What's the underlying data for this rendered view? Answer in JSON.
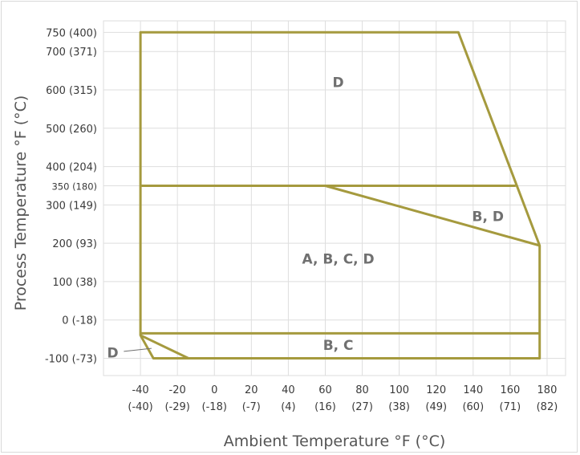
{
  "chart_data": {
    "type": "area",
    "xlabel": "Ambient Temperature °F (°C)",
    "ylabel": "Process Temperature °F (°C)",
    "xlim": [
      -60,
      190
    ],
    "ylim": [
      -145,
      780
    ],
    "grid": true,
    "x_ticks": [
      {
        "value": -40,
        "f": "-40",
        "c": "(-40)"
      },
      {
        "value": -20,
        "f": "-20",
        "c": "(-29)"
      },
      {
        "value": 0,
        "f": "0",
        "c": "(-18)"
      },
      {
        "value": 20,
        "f": "20",
        "c": "(-7)"
      },
      {
        "value": 40,
        "f": "40",
        "c": "(4)"
      },
      {
        "value": 60,
        "f": "60",
        "c": "(16)"
      },
      {
        "value": 80,
        "f": "80",
        "c": "(27)"
      },
      {
        "value": 100,
        "f": "100",
        "c": "(38)"
      },
      {
        "value": 120,
        "f": "120",
        "c": "(49)"
      },
      {
        "value": 140,
        "f": "140",
        "c": "(60)"
      },
      {
        "value": 160,
        "f": "160",
        "c": "(71)"
      },
      {
        "value": 180,
        "f": "180",
        "c": "(82)"
      }
    ],
    "y_ticks": [
      {
        "value": 750,
        "label": "750 (400)"
      },
      {
        "value": 700,
        "label": "700 (371)"
      },
      {
        "value": 600,
        "label": "600 (315)"
      },
      {
        "value": 500,
        "label": "500 (260)"
      },
      {
        "value": 400,
        "label": "400 (204)"
      },
      {
        "value": 350,
        "label": "350 (180)",
        "small": true
      },
      {
        "value": 300,
        "label": "300 (149)"
      },
      {
        "value": 200,
        "label": "200 (93)"
      },
      {
        "value": 100,
        "label": "100 (38)"
      },
      {
        "value": 0,
        "label": "0 (-18)"
      },
      {
        "value": -100,
        "label": "-100 (-73)"
      }
    ],
    "line_color": "#a59a3e",
    "shapes": [
      {
        "name": "outer-boundary",
        "closed": true,
        "points": [
          [
            -40,
            750
          ],
          [
            132,
            750
          ],
          [
            176,
            194
          ],
          [
            176,
            -100
          ],
          [
            -33,
            -100
          ],
          [
            -40,
            -40
          ]
        ]
      },
      {
        "name": "line-350",
        "closed": false,
        "points": [
          [
            -40,
            350
          ],
          [
            163,
            350
          ]
        ]
      },
      {
        "name": "diagonal-line",
        "closed": false,
        "points": [
          [
            60,
            350
          ],
          [
            176,
            194
          ]
        ]
      },
      {
        "name": "line-minus-35",
        "closed": false,
        "points": [
          [
            -40,
            -35
          ],
          [
            176,
            -35
          ]
        ]
      },
      {
        "name": "inner-diagonal",
        "closed": false,
        "points": [
          [
            -40,
            -40
          ],
          [
            -14,
            -100
          ]
        ]
      }
    ],
    "regions": [
      {
        "label": "D",
        "x": 67,
        "y": 620
      },
      {
        "label": "B, D",
        "x": 148,
        "y": 270
      },
      {
        "label": "A, B, C, D",
        "x": 67,
        "y": 160
      },
      {
        "label": "B, C",
        "x": 67,
        "y": -65
      },
      {
        "label": "D",
        "x": -55,
        "y": -85
      }
    ]
  }
}
